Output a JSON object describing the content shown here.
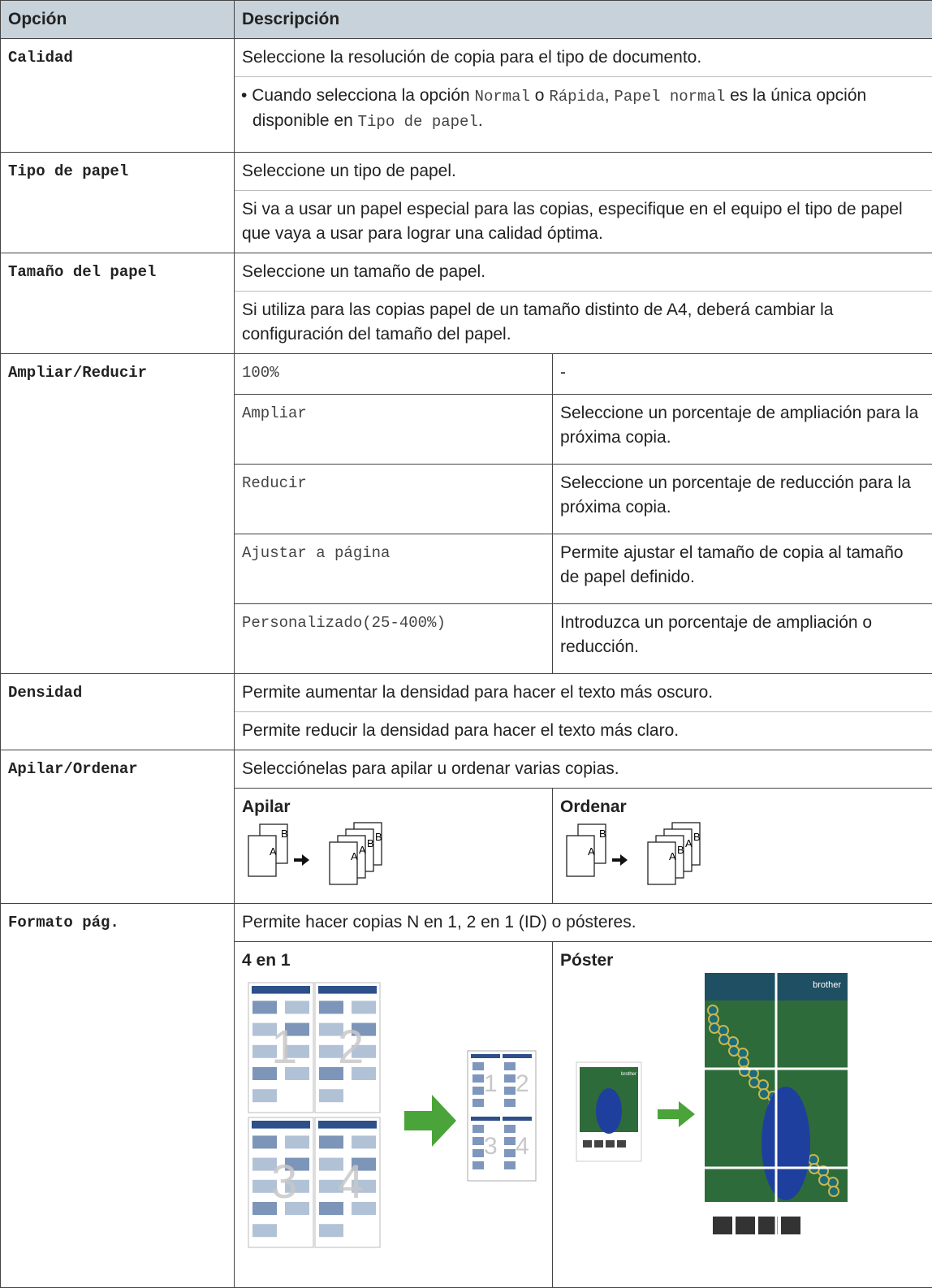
{
  "header": {
    "option": "Opción",
    "description": "Descripción"
  },
  "rows": [
    {
      "option": "Calidad",
      "lines": [
        "Seleccione la resolución de copia para el tipo de documento."
      ],
      "bullet": [
        "Cuando selecciona la opción ",
        "Normal",
        " o ",
        "Rápida",
        ", ",
        "Papel normal",
        " es la única opción disponible en ",
        "Tipo de papel",
        "."
      ]
    },
    {
      "option": "Tipo de papel",
      "lines": [
        "Seleccione un tipo de papel.",
        "Si va a usar un papel especial para las copias, especifique en el equipo el tipo de papel que vaya a usar para lograr una calidad óptima."
      ]
    },
    {
      "option": "Tamaño del papel",
      "lines": [
        "Seleccione un tamaño de papel.",
        "Si utiliza para las copias papel de un tamaño distinto de A4, deberá cambiar la configuración del tamaño del papel."
      ]
    },
    {
      "option": "Ampliar/Reducir",
      "sub": [
        [
          "100%",
          "-"
        ],
        [
          "Ampliar",
          "Seleccione un porcentaje de ampliación para la próxima copia."
        ],
        [
          "Reducir",
          "Seleccione un porcentaje de reducción para la próxima copia."
        ],
        [
          "Ajustar a página",
          "Permite ajustar el tamaño de copia al tamaño de papel definido."
        ],
        [
          "Personalizado(25-400%)",
          "Introduzca un porcentaje de ampliación o reducción."
        ]
      ]
    },
    {
      "option": "Densidad",
      "lines": [
        "Permite aumentar la densidad para hacer el texto más oscuro.",
        "Permite reducir la densidad para hacer el texto más claro."
      ]
    },
    {
      "option": "Apilar/Ordenar",
      "lines": [
        "Selecciónelas para apilar u ordenar varias copias."
      ],
      "figures": [
        "Apilar",
        "Ordenar"
      ]
    },
    {
      "option": "Formato pág.",
      "lines": [
        "Permite hacer copias N en 1, 2 en 1 (ID) o pósteres."
      ],
      "figures": [
        "4 en 1",
        "Póster"
      ]
    }
  ],
  "icon_letters": {
    "a": "A",
    "b": "B"
  },
  "page_numbers": [
    "1",
    "2",
    "3",
    "4"
  ],
  "brand": "brother"
}
